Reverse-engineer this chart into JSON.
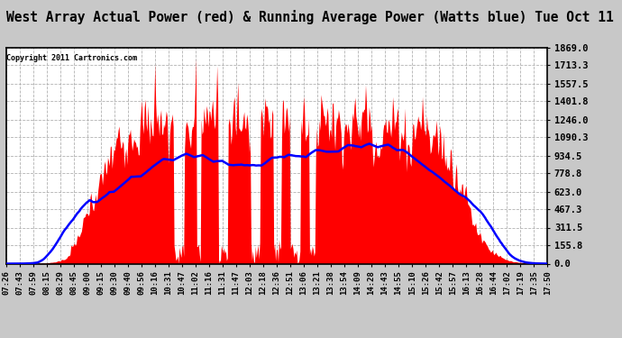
{
  "title": "West Array Actual Power (red) & Running Average Power (Watts blue) Tue Oct 11 17:50",
  "copyright": "Copyright 2011 Cartronics.com",
  "ylim": [
    0,
    1869.0
  ],
  "yticks": [
    0.0,
    155.8,
    311.5,
    467.3,
    623.0,
    778.8,
    934.5,
    1090.3,
    1246.0,
    1401.8,
    1557.5,
    1713.3,
    1869.0
  ],
  "background_color": "#c8c8c8",
  "plot_bg_color": "#ffffff",
  "bar_color": "#ff0000",
  "avg_color": "#0000ff",
  "title_fontsize": 10.5,
  "xlabel_fontsize": 6.5,
  "ylabel_fontsize": 7.5,
  "time_labels": [
    "07:26",
    "07:43",
    "07:59",
    "08:15",
    "08:29",
    "08:45",
    "09:00",
    "09:15",
    "09:30",
    "09:40",
    "09:56",
    "10:16",
    "10:31",
    "10:47",
    "11:02",
    "11:16",
    "11:31",
    "11:47",
    "12:03",
    "12:18",
    "12:36",
    "12:51",
    "13:06",
    "13:21",
    "13:38",
    "13:54",
    "14:09",
    "14:28",
    "14:43",
    "14:55",
    "15:10",
    "15:26",
    "15:42",
    "15:57",
    "16:13",
    "16:28",
    "16:44",
    "17:02",
    "17:19",
    "17:35",
    "17:50"
  ],
  "n_points": 620
}
